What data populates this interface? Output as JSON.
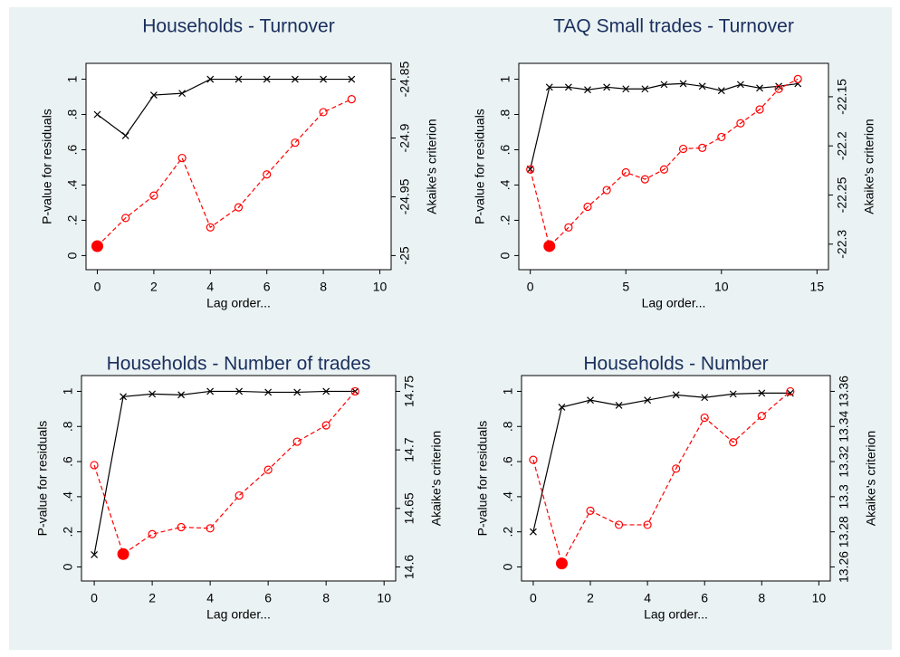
{
  "chart_data": [
    {
      "type": "line",
      "title": "Households - Turnover",
      "xlabel": "Lag order...",
      "ylabel": "P-value for residuals",
      "y2label": "Akaike's criterion",
      "x": [
        0,
        1,
        2,
        3,
        4,
        5,
        6,
        7,
        8,
        9
      ],
      "xlim": [
        -0.4,
        10.4
      ],
      "xticks": [
        0,
        2,
        4,
        6,
        8,
        10
      ],
      "ylim": [
        -0.08,
        1.09
      ],
      "yticks": [
        0,
        {
          "value": 0.2,
          "label": ".2"
        },
        {
          "value": 0.4,
          "label": ".4"
        },
        {
          "value": 0.6,
          "label": ".6"
        },
        {
          "value": 0.8,
          "label": ".8"
        },
        1
      ],
      "y2lim": [
        -25.012,
        -24.8365
      ],
      "y2ticks": [
        -25,
        -24.95,
        -24.9,
        -24.85
      ],
      "series": [
        {
          "color": "#000000",
          "marker": "x",
          "line": "solid",
          "values": [
            0.8,
            0.68,
            0.91,
            0.92,
            1.0,
            1.0,
            1.0,
            1.0,
            1.0,
            1.0
          ]
        },
        {
          "color": "#ff0000",
          "marker": "circle",
          "line": "dashed",
          "axis": "y2",
          "values": [
            -24.992,
            -24.968,
            -24.949,
            -24.917,
            -24.976,
            -24.959,
            -24.931,
            -24.904,
            -24.878,
            -24.867
          ]
        }
      ]
    },
    {
      "type": "line",
      "title": "TAQ Small trades - Turnover",
      "xlabel": "Lag order...",
      "ylabel": "P-value for residuals",
      "y2label": "Akaike's criterion",
      "x": [
        0,
        1,
        2,
        3,
        4,
        5,
        6,
        7,
        8,
        9,
        10,
        11,
        12,
        13,
        14
      ],
      "xlim": [
        -0.6,
        15.6
      ],
      "xticks": [
        0,
        5,
        10,
        15
      ],
      "ylim": [
        -0.08,
        1.09
      ],
      "yticks": [
        0,
        {
          "value": 0.2,
          "label": ".2"
        },
        {
          "value": 0.4,
          "label": ".4"
        },
        {
          "value": 0.6,
          "label": ".6"
        },
        {
          "value": 0.8,
          "label": ".8"
        },
        1
      ],
      "y2lim": [
        -22.326,
        -22.116
      ],
      "y2ticks": [
        -22.3,
        -22.25,
        -22.2,
        -22.15
      ],
      "series": [
        {
          "color": "#000000",
          "marker": "x",
          "line": "solid",
          "values": [
            0.49,
            0.955,
            0.955,
            0.94,
            0.955,
            0.945,
            0.945,
            0.97,
            0.975,
            0.96,
            0.935,
            0.97,
            0.95,
            0.96,
            0.975
          ]
        },
        {
          "color": "#ff0000",
          "marker": "circle",
          "line": "dashed",
          "axis": "y2",
          "values": [
            -22.224,
            -22.302,
            -22.283,
            -22.262,
            -22.245,
            -22.227,
            -22.234,
            -22.224,
            -22.203,
            -22.202,
            -22.191,
            -22.177,
            -22.163,
            -22.142,
            -22.132
          ]
        }
      ]
    },
    {
      "type": "line",
      "title": "Households - Number of trades",
      "xlabel": "Lag order...",
      "ylabel": "P-value for residuals",
      "y2label": "Akaike's criterion",
      "x": [
        0,
        1,
        2,
        3,
        4,
        5,
        6,
        7,
        8,
        9
      ],
      "xlim": [
        -0.44,
        10.4
      ],
      "xticks": [
        0,
        2,
        4,
        6,
        8,
        10
      ],
      "ylim": [
        -0.08,
        1.09
      ],
      "yticks": [
        0,
        {
          "value": 0.2,
          "label": ".2"
        },
        {
          "value": 0.4,
          "label": ".4"
        },
        {
          "value": 0.6,
          "label": ".6"
        },
        {
          "value": 0.8,
          "label": ".8"
        },
        1
      ],
      "y2lim": [
        14.588,
        14.7635
      ],
      "y2ticks": [
        14.6,
        14.65,
        14.7,
        14.75
      ],
      "series": [
        {
          "color": "#000000",
          "marker": "x",
          "line": "solid",
          "values": [
            0.07,
            0.97,
            0.985,
            0.98,
            1.0,
            1.0,
            0.995,
            0.995,
            1.0,
            1.0
          ]
        },
        {
          "color": "#ff0000",
          "marker": "circle",
          "line": "dashed",
          "axis": "y2",
          "values": [
            14.687,
            14.611,
            14.628,
            14.634,
            14.633,
            14.661,
            14.683,
            14.707,
            14.721,
            14.75
          ]
        }
      ]
    },
    {
      "type": "line",
      "title": "Households - Number",
      "xlabel": "Lag order...",
      "ylabel": "P-value for residuals",
      "y2label": "Akaike's criterion",
      "x": [
        0,
        1,
        2,
        3,
        4,
        5,
        6,
        7,
        8,
        9
      ],
      "xlim": [
        -0.41,
        10.4
      ],
      "xticks": [
        0,
        2,
        4,
        6,
        8,
        10
      ],
      "ylim": [
        -0.08,
        1.09
      ],
      "yticks": [
        0,
        {
          "value": 0.2,
          "label": ".2"
        },
        {
          "value": 0.4,
          "label": ".4"
        },
        {
          "value": 0.6,
          "label": ".6"
        },
        {
          "value": 0.8,
          "label": ".8"
        },
        1
      ],
      "y2lim": [
        13.252,
        13.369
      ],
      "y2ticks": [
        13.26,
        13.28,
        13.3,
        13.32,
        13.34,
        13.36
      ],
      "series": [
        {
          "color": "#000000",
          "marker": "x",
          "line": "solid",
          "values": [
            0.2,
            0.91,
            0.95,
            0.92,
            0.95,
            0.98,
            0.965,
            0.985,
            0.99,
            0.99
          ]
        },
        {
          "color": "#ff0000",
          "marker": "circle",
          "line": "dashed",
          "axis": "y2",
          "values": [
            13.321,
            13.262,
            13.292,
            13.284,
            13.284,
            13.316,
            13.345,
            13.331,
            13.346,
            13.36
          ]
        }
      ]
    }
  ]
}
